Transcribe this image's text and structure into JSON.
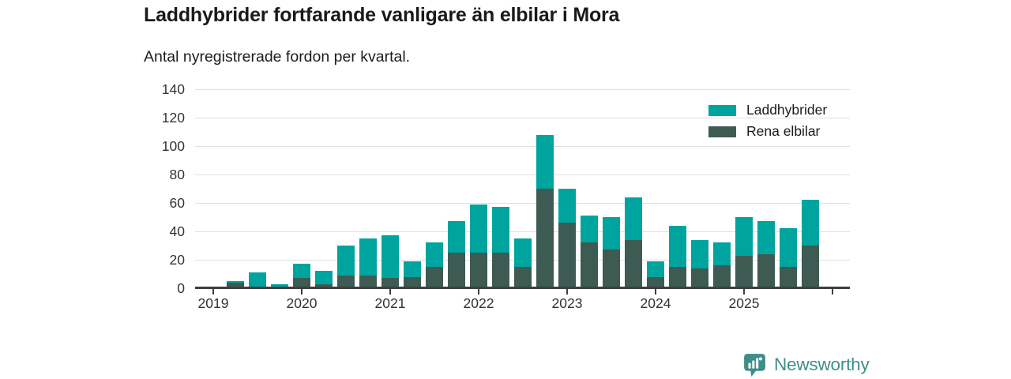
{
  "header": {
    "title": "Laddhybrider fortfarande vanligare än elbilar i Mora",
    "subtitle": "Antal nyregistrerade fordon per kvartal."
  },
  "chart_data": {
    "type": "bar",
    "stacked": true,
    "title": "Laddhybrider fortfarande vanligare än elbilar i Mora",
    "subtitle": "Antal nyregistrerade fordon per kvartal.",
    "xlabel": "",
    "ylabel": "",
    "ylim": [
      0,
      140
    ],
    "y_ticks": [
      0,
      20,
      40,
      60,
      80,
      100,
      120,
      140
    ],
    "grid": "horizontal",
    "legend_position": "top-right",
    "categories": [
      "2019 Q1",
      "2019 Q2",
      "2019 Q3",
      "2019 Q4",
      "2020 Q1",
      "2020 Q2",
      "2020 Q3",
      "2020 Q4",
      "2021 Q1",
      "2021 Q2",
      "2021 Q3",
      "2021 Q4",
      "2022 Q1",
      "2022 Q2",
      "2022 Q3",
      "2022 Q4",
      "2023 Q1",
      "2023 Q2",
      "2023 Q3",
      "2023 Q4",
      "2024 Q1",
      "2024 Q2",
      "2024 Q3",
      "2024 Q4",
      "2025 Q1",
      "2025 Q2",
      "2025 Q3",
      "2025 Q4"
    ],
    "x_tick_labels": [
      "2019",
      "2020",
      "2021",
      "2022",
      "2023",
      "2024",
      "2025"
    ],
    "series": [
      {
        "name": "Laddhybrider",
        "color": "#00a49e",
        "stack_order": "top",
        "values": [
          0,
          1,
          11,
          3,
          10,
          9,
          21,
          26,
          30,
          11,
          17,
          22,
          34,
          32,
          20,
          38,
          24,
          19,
          23,
          30,
          11,
          29,
          20,
          16,
          27,
          23,
          27,
          32
        ]
      },
      {
        "name": "Rena elbilar",
        "color": "#3d5b52",
        "stack_order": "bottom",
        "values": [
          0,
          4,
          0,
          0,
          7,
          3,
          9,
          9,
          7,
          8,
          15,
          25,
          25,
          25,
          15,
          70,
          46,
          32,
          27,
          34,
          8,
          15,
          14,
          16,
          23,
          24,
          15,
          30
        ]
      }
    ],
    "stack_totals": [
      0,
      5,
      11,
      3,
      17,
      12,
      30,
      35,
      37,
      19,
      32,
      47,
      59,
      57,
      35,
      108,
      70,
      51,
      50,
      64,
      19,
      44,
      34,
      32,
      50,
      47,
      42,
      62
    ]
  },
  "legend": {
    "items": [
      {
        "label": "Laddhybrider",
        "color": "#00a49e"
      },
      {
        "label": "Rena elbilar",
        "color": "#3d5b52"
      }
    ]
  },
  "footer": {
    "brand": "Newsworthy",
    "brand_color": "#3e8e89",
    "logo_icon": "bar-chart-speech-bubble-icon"
  },
  "colors": {
    "background": "#ffffff",
    "title_text": "#1a1a1a",
    "axis_text": "#333333",
    "gridline": "#e0e0e0",
    "axis_line": "#3f3f3f",
    "series_laddhybrider": "#00a49e",
    "series_rena_elbilar": "#3d5b52",
    "brand": "#3e8e89"
  }
}
